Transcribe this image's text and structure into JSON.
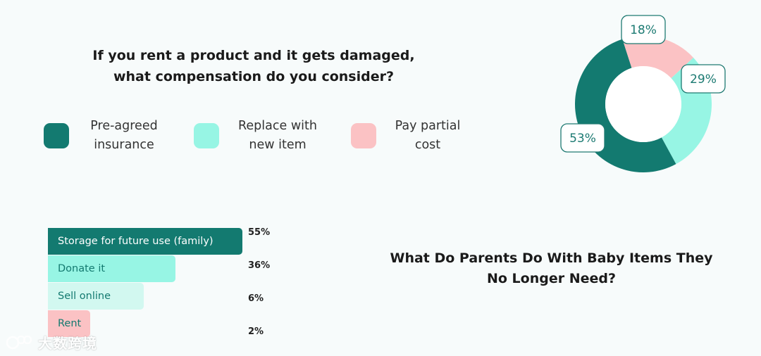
{
  "colors": {
    "dark_green": "#137a70",
    "mint": "#97f5e4",
    "pale_mint": "#d2f8f0",
    "pink": "#fbc2c4",
    "label_border": "#1f7a72",
    "label_text": "#1c7a72"
  },
  "top": {
    "question": "If you rent a product and it gets damaged, what compensation do you consider?",
    "legend": [
      {
        "label": "Pre-agreed insurance",
        "color": "#137a70"
      },
      {
        "label": "Replace with new item",
        "color": "#97f5e4"
      },
      {
        "label": "Pay partial cost",
        "color": "#fbc2c4"
      }
    ]
  },
  "bottom": {
    "question": "What Do Parents Do With Baby Items They No Longer Need?"
  },
  "watermark": {
    "text": "大数跨境"
  },
  "chart_data": [
    {
      "type": "pie",
      "donut": true,
      "title": "If you rent a product and it gets damaged, what compensation do you consider?",
      "series": [
        {
          "name": "Pre-agreed insurance",
          "value": 53,
          "label": "53%",
          "color": "#137a70"
        },
        {
          "name": "Replace with new item",
          "value": 29,
          "label": "29%",
          "color": "#97f5e4"
        },
        {
          "name": "Pay partial cost",
          "value": 18,
          "label": "18%",
          "color": "#fbc2c4"
        }
      ]
    },
    {
      "type": "bar",
      "orientation": "horizontal",
      "title": "What Do Parents Do With Baby Items They No Longer Need?",
      "categories": [
        "Storage for future use (family)",
        "Donate it",
        "Sell online",
        "Rent"
      ],
      "values": [
        55,
        36,
        6,
        2
      ],
      "labels": [
        "55%",
        "36%",
        "6%",
        "2%"
      ],
      "colors": [
        "#137a70",
        "#97f5e4",
        "#d2f8f0",
        "#fbc2c4"
      ],
      "text_colors": [
        "#ffffff",
        "#137a70",
        "#137a70",
        "#137a70"
      ]
    }
  ]
}
